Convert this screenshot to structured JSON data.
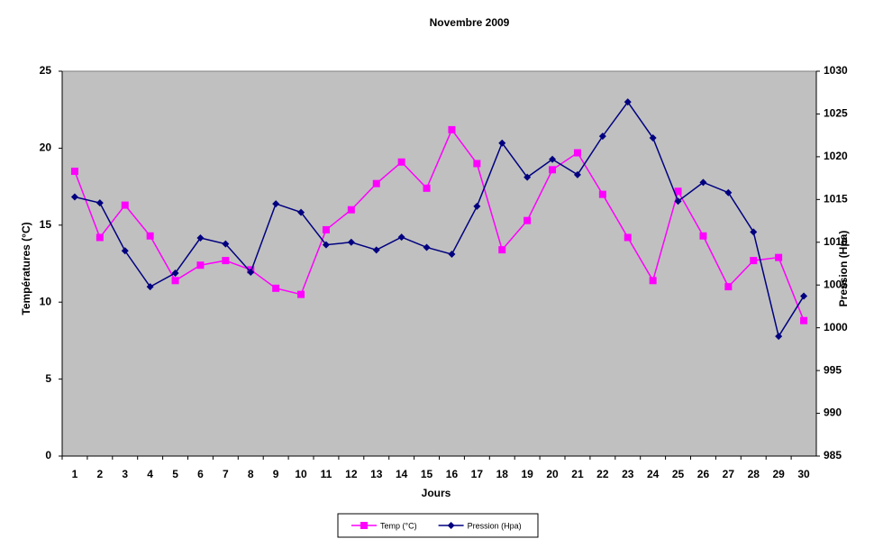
{
  "chart_data": {
    "type": "line",
    "title": "Novembre 2009",
    "x_label": "Jours",
    "y_label": "Températures (°C)",
    "y2_label": "Pression (Hpa)",
    "categories": [
      "1",
      "2",
      "3",
      "4",
      "5",
      "6",
      "7",
      "8",
      "9",
      "10",
      "11",
      "12",
      "13",
      "14",
      "15",
      "16",
      "17",
      "18",
      "19",
      "20",
      "21",
      "22",
      "23",
      "24",
      "25",
      "26",
      "27",
      "28",
      "29",
      "30"
    ],
    "series": [
      {
        "name": "Temp (°C)",
        "color": "#FF00FF",
        "marker": "square",
        "values": [
          18.5,
          14.2,
          16.3,
          14.3,
          11.4,
          12.4,
          12.7,
          12.1,
          10.9,
          10.5,
          14.7,
          16.0,
          17.7,
          19.1,
          17.4,
          21.2,
          19.0,
          13.4,
          15.3,
          18.6,
          19.7,
          17.0,
          14.2,
          11.4,
          17.2,
          14.3,
          11.0,
          12.7,
          12.9,
          8.8
        ]
      },
      {
        "name": "Pression (Hpa)",
        "color": "#000080",
        "marker": "diamond",
        "axis": "y2",
        "values": [
          1015.3,
          1014.6,
          1009.0,
          1004.8,
          1006.4,
          1010.5,
          1009.8,
          1006.5,
          1014.5,
          1013.5,
          1009.7,
          1010.0,
          1009.1,
          1010.6,
          1009.4,
          1008.6,
          1014.2,
          1021.6,
          1017.6,
          1019.7,
          1017.9,
          1022.4,
          1026.4,
          1022.2,
          1014.8,
          1017.0,
          1015.8,
          1011.2,
          999.0,
          1003.7
        ]
      }
    ],
    "ylim": [
      0,
      25
    ],
    "yticks": [
      0,
      5,
      10,
      15,
      20,
      25
    ],
    "y2lim": [
      985,
      1030
    ],
    "y2ticks": [
      985,
      990,
      995,
      1000,
      1005,
      1010,
      1015,
      1020,
      1025,
      1030
    ],
    "plot_background": "#C0C0C0",
    "grid": false,
    "legend": "bottom"
  }
}
